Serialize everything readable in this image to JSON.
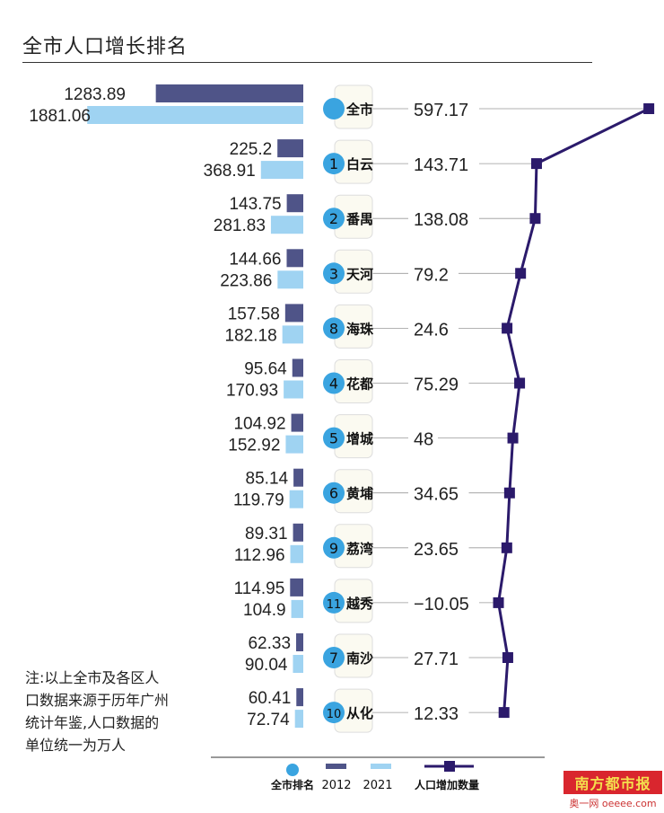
{
  "title": "全市人口增长排名",
  "note": "注:以上全市及各区人口数据来源于历年广州统计年鉴,人口数据的单位统一为万人",
  "logo": {
    "name": "南方都市报",
    "sub": "奥一网 oeeee.com"
  },
  "colors": {
    "bar2012": "#4f5488",
    "bar2021": "#9fd3f2",
    "circle": "#3aa4e0",
    "line": "#2b1a6b",
    "badge": "#fbfaf1"
  },
  "chart_data": {
    "type": "bar",
    "title": "全市人口增长排名",
    "unit": "万人",
    "legend": [
      "全市排名",
      "2012",
      "2021",
      "人口增加数量"
    ],
    "legend_position": "bottom",
    "categories": [
      "全市",
      "白云",
      "番禺",
      "天河",
      "海珠",
      "花都",
      "增城",
      "黄埔",
      "荔湾",
      "越秀",
      "南沙",
      "从化"
    ],
    "ranks": [
      "",
      "1",
      "2",
      "3",
      "8",
      "4",
      "5",
      "6",
      "9",
      "11",
      "7",
      "10"
    ],
    "series": [
      {
        "name": "2012",
        "type": "bar",
        "values": [
          1283.89,
          225.2,
          143.75,
          144.66,
          157.58,
          95.64,
          104.92,
          85.14,
          89.31,
          114.95,
          62.33,
          60.41
        ]
      },
      {
        "name": "2021",
        "type": "bar",
        "values": [
          1881.06,
          368.91,
          281.83,
          223.86,
          182.18,
          170.93,
          152.92,
          119.79,
          112.96,
          104.9,
          90.04,
          72.74
        ]
      },
      {
        "name": "人口增加数量",
        "type": "line",
        "values": [
          597.17,
          143.71,
          138.08,
          79.2,
          24.6,
          75.29,
          48,
          34.65,
          23.65,
          -10.05,
          27.71,
          12.33
        ]
      }
    ],
    "labels": {
      "bar2012": [
        "1283.89",
        "225.2",
        "143.75",
        "144.66",
        "157.58",
        "95.64",
        "104.92",
        "85.14",
        "89.31",
        "114.95",
        "62.33",
        "60.41"
      ],
      "bar2021": [
        "1881.06",
        "368.91",
        "281.83",
        "223.86",
        "182.18",
        "170.93",
        "152.92",
        "119.79",
        "112.96",
        "104.9",
        "90.04",
        "72.74"
      ],
      "increase": [
        "597.17",
        "143.71",
        "138.08",
        "79.2",
        "24.6",
        "75.29",
        "48",
        "34.65",
        "23.65",
        "−10.05",
        "27.71",
        "12.33"
      ]
    }
  }
}
